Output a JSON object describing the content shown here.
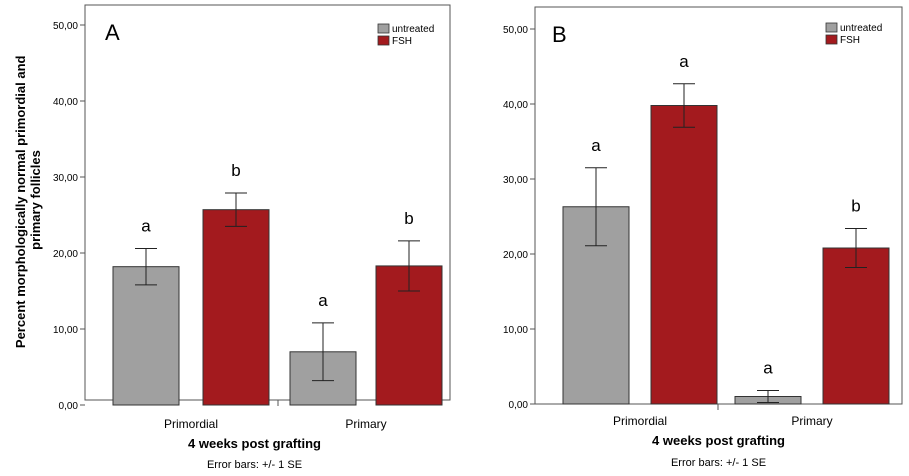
{
  "ylabel_lines": [
    "Percent morphologically normal primordial and",
    "primary follicles"
  ],
  "chart_data": [
    {
      "type": "bar",
      "panel_label": "A",
      "categories": [
        "Primordial",
        "Primary"
      ],
      "series": [
        {
          "name": "untreated",
          "color": "#a0a0a0",
          "values": [
            18.2,
            7.0
          ],
          "error": [
            2.4,
            3.8
          ],
          "sig": [
            "a",
            "a"
          ]
        },
        {
          "name": "FSH",
          "color": "#a31a1e",
          "values": [
            25.7,
            18.3
          ],
          "error": [
            2.2,
            3.3
          ],
          "sig": [
            "b",
            "b"
          ]
        }
      ],
      "xlabel": "4 weeks post grafting",
      "note": "Error bars: +/- 1 SE",
      "ylim": [
        0,
        50
      ],
      "yticks": [
        "0,00",
        "10,00",
        "20,00",
        "30,00",
        "40,00",
        "50,00"
      ],
      "legend_position": "top-right",
      "grid": false
    },
    {
      "type": "bar",
      "panel_label": "B",
      "categories": [
        "Primordial",
        "Primary"
      ],
      "series": [
        {
          "name": "untreated",
          "color": "#a0a0a0",
          "values": [
            26.3,
            1.0
          ],
          "error": [
            5.2,
            0.8
          ],
          "sig": [
            "a",
            "a"
          ]
        },
        {
          "name": "FSH",
          "color": "#a31a1e",
          "values": [
            39.8,
            20.8
          ],
          "error": [
            2.9,
            2.6
          ],
          "sig": [
            "a",
            "b"
          ]
        }
      ],
      "xlabel": "4 weeks post grafting",
      "note": "Error bars: +/- 1 SE",
      "ylim": [
        0,
        50
      ],
      "yticks": [
        "0,00",
        "10,00",
        "20,00",
        "30,00",
        "40,00",
        "50,00"
      ],
      "legend_position": "top-right",
      "grid": false
    }
  ]
}
